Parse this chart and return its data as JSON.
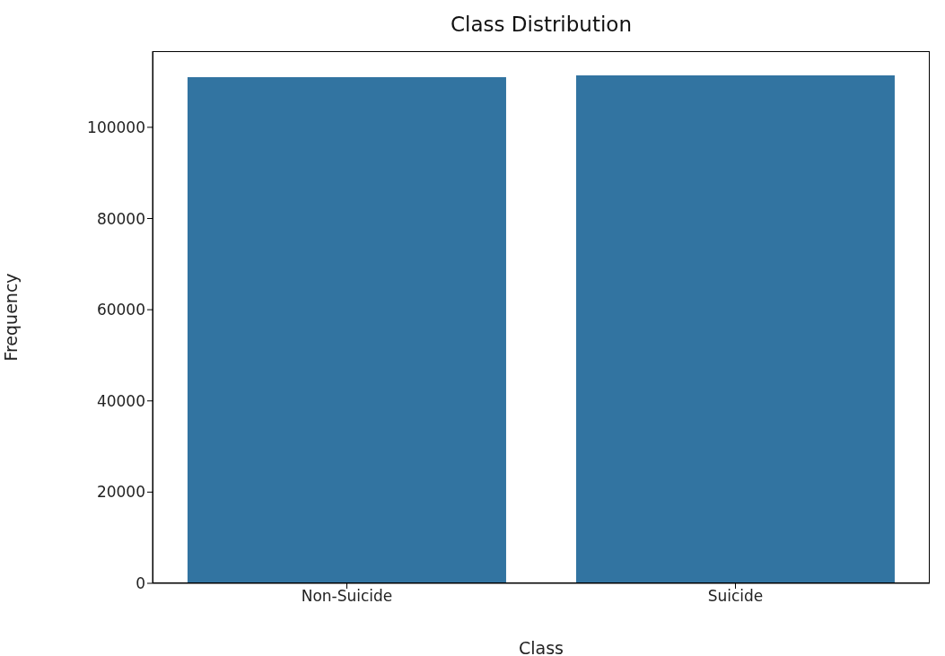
{
  "chart_data": {
    "type": "bar",
    "title": "Class Distribution",
    "xlabel": "Class",
    "ylabel": "Frequency",
    "categories": [
      "Non-Suicide",
      "Suicide"
    ],
    "values": [
      111000,
      111400
    ],
    "color": "#3274a1",
    "ylim": [
      0,
      116700
    ],
    "yticks": [
      0,
      20000,
      40000,
      60000,
      80000,
      100000
    ],
    "grid": false,
    "legend": false
  }
}
